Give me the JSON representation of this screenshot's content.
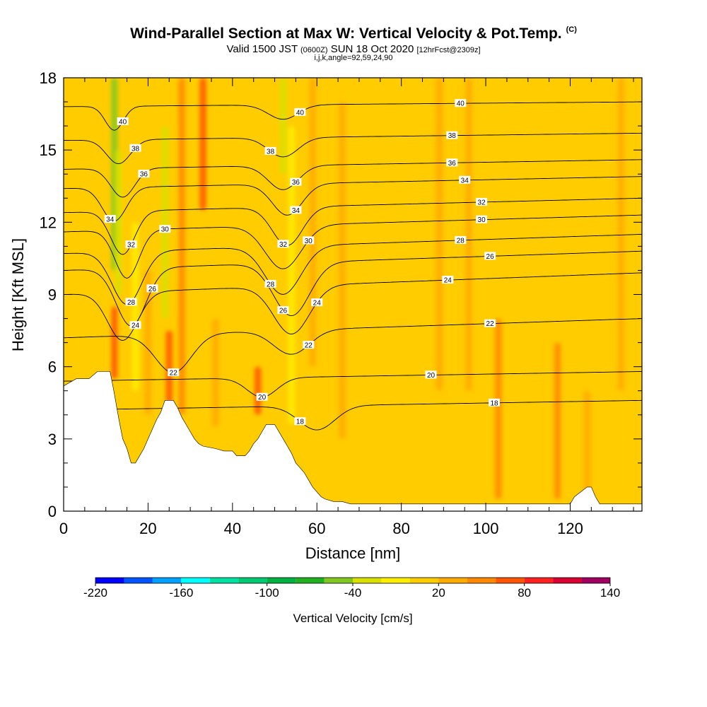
{
  "header": {
    "title": "Wind-Parallel Section at Max W: Vertical Velocity & Pot.Temp.",
    "title_mark": "(C)",
    "valid_prefix": "Valid 1500 JST",
    "valid_z": "(0600Z)",
    "valid_date": "SUN 18 Oct 2020",
    "forecast": "[12hrFcst@2309z]",
    "params": "i,j,k,angle=92,59,24,90"
  },
  "chart_data": {
    "type": "heatmap",
    "xlabel": "Distance [nm]",
    "ylabel": "Height [Kft MSL]",
    "xlim": [
      0,
      137
    ],
    "ylim": [
      0,
      18
    ],
    "x_ticks": [
      0,
      20,
      40,
      60,
      80,
      100,
      120
    ],
    "y_ticks": [
      0,
      3,
      6,
      9,
      12,
      15,
      18
    ],
    "colorbar": {
      "label": "Vertical Velocity [cm/s]",
      "range": [
        -220,
        140
      ],
      "step": 20,
      "tick_values": [
        -220,
        -160,
        -100,
        -40,
        20,
        80,
        140
      ],
      "tick_labels": [
        "-220",
        "-160",
        "-100",
        "-40",
        "20",
        "80",
        "140"
      ],
      "colors": [
        "#0000ff",
        "#0055ff",
        "#00a0ff",
        "#00ffff",
        "#00e0a0",
        "#00c870",
        "#00b040",
        "#20b020",
        "#80c820",
        "#d8e000",
        "#ffee00",
        "#ffcc00",
        "#ffaa00",
        "#ff8800",
        "#ff5500",
        "#ff2020",
        "#d80030",
        "#a00060",
        "#6a0080"
      ]
    },
    "background_w": 5,
    "w_features": [
      {
        "x": 10,
        "y": [
          0,
          18
        ],
        "w": 0
      },
      {
        "x": 12,
        "y": [
          10,
          18
        ],
        "w": -50
      },
      {
        "x": 13,
        "y": [
          9,
          15
        ],
        "w": -40
      },
      {
        "x": 12,
        "y": [
          5.5,
          8.5
        ],
        "w": 60
      },
      {
        "x": 17,
        "y": [
          5,
          12
        ],
        "w": -20
      },
      {
        "x": 20,
        "y": [
          4,
          10
        ],
        "w": 30
      },
      {
        "x": 24,
        "y": [
          8,
          16
        ],
        "w": -40
      },
      {
        "x": 25,
        "y": [
          4.5,
          7.5
        ],
        "w": 60
      },
      {
        "x": 28,
        "y": [
          4,
          18
        ],
        "w": 40
      },
      {
        "x": 33,
        "y": [
          12.5,
          18
        ],
        "w": 60
      },
      {
        "x": 36,
        "y": [
          3.5,
          8
        ],
        "w": 25
      },
      {
        "x": 46,
        "y": [
          4,
          6
        ],
        "w": 60
      },
      {
        "x": 52,
        "y": [
          14,
          18
        ],
        "w": -30
      },
      {
        "x": 54,
        "y": [
          3.6,
          16
        ],
        "w": -15
      },
      {
        "x": 59,
        "y": [
          6,
          18
        ],
        "w": 25
      },
      {
        "x": 66,
        "y": [
          3,
          17
        ],
        "w": 30
      },
      {
        "x": 89,
        "y": [
          5,
          18
        ],
        "w": 20
      },
      {
        "x": 96,
        "y": [
          5,
          18
        ],
        "w": 30
      },
      {
        "x": 103,
        "y": [
          0.5,
          8
        ],
        "w": 40
      },
      {
        "x": 117,
        "y": [
          0.5,
          7
        ],
        "w": 40
      },
      {
        "x": 124,
        "y": [
          0.5,
          5
        ],
        "w": 30
      },
      {
        "x": 132,
        "y": [
          5,
          18
        ],
        "w": 20
      }
    ],
    "terrain": {
      "x": [
        0,
        3,
        6,
        8,
        11,
        12,
        13,
        14,
        15,
        16,
        17,
        18,
        19,
        20,
        21,
        22,
        23,
        24,
        26,
        27,
        28,
        29,
        30,
        31,
        32,
        33,
        36,
        38,
        40,
        41,
        42,
        43,
        44,
        45,
        46,
        47,
        48,
        50,
        51,
        52,
        53,
        54,
        55,
        56,
        57,
        58,
        59,
        60,
        61,
        62,
        64,
        66,
        68,
        70,
        120,
        121,
        124,
        125,
        126,
        127,
        130,
        137
      ],
      "height": [
        5.2,
        5.5,
        5.5,
        5.8,
        5.8,
        4.9,
        3.9,
        3.0,
        2.6,
        2.0,
        2.0,
        2.3,
        2.6,
        3.0,
        3.4,
        3.8,
        4.1,
        4.6,
        4.6,
        4.3,
        3.9,
        3.6,
        3.3,
        3.0,
        2.8,
        2.7,
        2.6,
        2.5,
        2.5,
        2.3,
        2.3,
        2.3,
        2.5,
        2.8,
        3.0,
        3.3,
        3.6,
        3.6,
        3.3,
        3.0,
        2.7,
        2.4,
        2.0,
        1.8,
        1.6,
        1.3,
        1.0,
        0.8,
        0.6,
        0.5,
        0.4,
        0.4,
        0.3,
        0.3,
        0.3,
        0.6,
        1.0,
        1.0,
        0.6,
        0.3,
        0.3,
        0.3
      ]
    },
    "theta_contours": [
      {
        "value": 40,
        "label": "40",
        "base_y": 16.8,
        "slope": 0.2,
        "dips": [
          {
            "x": 12,
            "depth": 1.0,
            "width": 3
          },
          {
            "x": 52,
            "depth": 0.6,
            "width": 5
          }
        ],
        "label_x": [
          14,
          56,
          94
        ]
      },
      {
        "value": 38,
        "label": "38",
        "base_y": 15.4,
        "slope": 0.3,
        "dips": [
          {
            "x": 13,
            "depth": 1.0,
            "width": 4
          },
          {
            "x": 52,
            "depth": 0.8,
            "width": 5
          }
        ],
        "label_x": [
          17,
          49,
          92
        ]
      },
      {
        "value": 36,
        "label": "36",
        "base_y": 14.2,
        "slope": 0.4,
        "dips": [
          {
            "x": 14,
            "depth": 1.2,
            "width": 4
          },
          {
            "x": 52,
            "depth": 1.0,
            "width": 5
          }
        ],
        "label_x": [
          19,
          55,
          92
        ]
      },
      {
        "value": 34,
        "label": "34",
        "base_y": 13.4,
        "slope": 0.5,
        "dips": [
          {
            "x": 12,
            "depth": 1.4,
            "width": 4
          },
          {
            "x": 53,
            "depth": 1.3,
            "width": 5
          }
        ],
        "label_x": [
          11,
          55,
          95
        ]
      },
      {
        "value": 32,
        "label": "32",
        "base_y": 12.4,
        "slope": 0.6,
        "dips": [
          {
            "x": 14,
            "depth": 1.8,
            "width": 4
          },
          {
            "x": 53,
            "depth": 1.6,
            "width": 5
          }
        ],
        "label_x": [
          16,
          52,
          99
        ]
      },
      {
        "value": 30,
        "label": "30",
        "base_y": 11.6,
        "slope": 0.7,
        "dips": [
          {
            "x": 15,
            "depth": 2.0,
            "width": 4
          },
          {
            "x": 52,
            "depth": 1.8,
            "width": 6
          }
        ],
        "label_x": [
          24,
          58,
          99
        ]
      },
      {
        "value": 28,
        "label": "28",
        "base_y": 10.7,
        "slope": 0.8,
        "dips": [
          {
            "x": 15,
            "depth": 2.2,
            "width": 5
          },
          {
            "x": 52,
            "depth": 2.0,
            "width": 6
          }
        ],
        "label_x": [
          16,
          49,
          94
        ]
      },
      {
        "value": 26,
        "label": "26",
        "base_y": 10.0,
        "slope": 0.8,
        "dips": [
          {
            "x": 16,
            "depth": 2.4,
            "width": 5
          },
          {
            "x": 54,
            "depth": 2.2,
            "width": 6
          }
        ],
        "label_x": [
          21,
          52,
          101
        ]
      },
      {
        "value": 24,
        "label": "24",
        "base_y": 9.0,
        "slope": 0.9,
        "dips": [
          {
            "x": 14,
            "depth": 2.0,
            "width": 5
          },
          {
            "x": 54,
            "depth": 2.0,
            "width": 6
          }
        ],
        "label_x": [
          17,
          60,
          91
        ]
      },
      {
        "value": 22,
        "label": "22",
        "base_y": 7.2,
        "slope": 0.8,
        "dips": [
          {
            "x": 26,
            "depth": 1.6,
            "width": 6
          },
          {
            "x": 54,
            "depth": 1.0,
            "width": 6
          }
        ],
        "label_x": [
          26,
          58,
          101
        ]
      },
      {
        "value": 20,
        "label": "20",
        "base_y": 5.4,
        "slope": 0.4,
        "dips": [
          {
            "x": 47,
            "depth": 0.8,
            "width": 5
          }
        ],
        "label_x": [
          47,
          87
        ]
      },
      {
        "value": 18,
        "label": "18",
        "base_y": 4.2,
        "slope": 0.4,
        "dips": [
          {
            "x": 60,
            "depth": 1.0,
            "width": 6
          }
        ],
        "label_x": [
          56,
          102
        ]
      }
    ]
  }
}
